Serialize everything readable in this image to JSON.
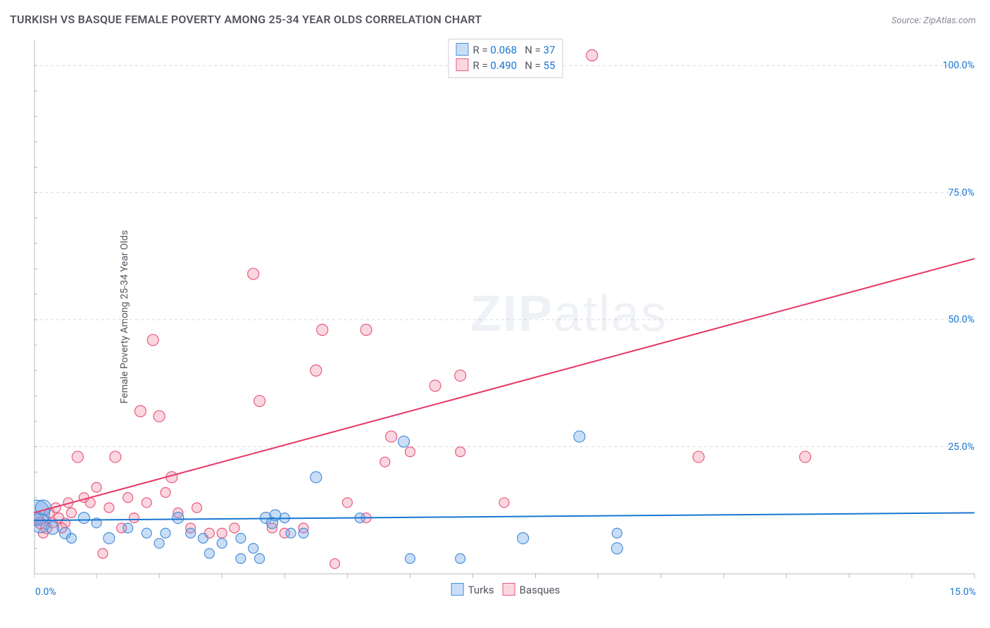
{
  "title": "TURKISH VS BASQUE FEMALE POVERTY AMONG 25-34 YEAR OLDS CORRELATION CHART",
  "source": "Source: ZipAtlas.com",
  "ylabel": "Female Poverty Among 25-34 Year Olds",
  "watermark_zip": "ZIP",
  "watermark_atlas": "atlas",
  "chart": {
    "type": "scatter",
    "xlim": [
      0,
      15
    ],
    "ylim": [
      0,
      105
    ],
    "xlim_labels": [
      "0.0%",
      "15.0%"
    ],
    "ytick_values": [
      25,
      50,
      75,
      100
    ],
    "ytick_labels": [
      "25.0%",
      "50.0%",
      "75.0%",
      "100.0%"
    ],
    "grid_color": "#d8d8e0",
    "axis_color": "#b8b8c4",
    "tick_color": "#b8b8c4",
    "background": "#ffffff",
    "series": [
      {
        "key": "turks",
        "label": "Turks",
        "fill": "rgba(100,160,230,0.35)",
        "stroke": "#4a90d9",
        "line_color": "#1976d2",
        "line_width": 2,
        "R": "0.068",
        "N": "37",
        "trend": {
          "x1": 0,
          "y1": 10.5,
          "x2": 15,
          "y2": 12.0
        },
        "points": [
          {
            "x": 0.05,
            "y": 12,
            "r": 18
          },
          {
            "x": 0.1,
            "y": 10,
            "r": 14
          },
          {
            "x": 0.15,
            "y": 13,
            "r": 11
          },
          {
            "x": 0.3,
            "y": 9,
            "r": 9
          },
          {
            "x": 0.5,
            "y": 8,
            "r": 8
          },
          {
            "x": 0.8,
            "y": 11,
            "r": 8
          },
          {
            "x": 1.2,
            "y": 7,
            "r": 8
          },
          {
            "x": 1.5,
            "y": 9,
            "r": 7
          },
          {
            "x": 1.8,
            "y": 8,
            "r": 7
          },
          {
            "x": 2.0,
            "y": 6,
            "r": 7
          },
          {
            "x": 2.3,
            "y": 11,
            "r": 8
          },
          {
            "x": 2.5,
            "y": 8,
            "r": 7
          },
          {
            "x": 2.7,
            "y": 7,
            "r": 7
          },
          {
            "x": 2.8,
            "y": 4,
            "r": 7
          },
          {
            "x": 3.0,
            "y": 6,
            "r": 7
          },
          {
            "x": 3.3,
            "y": 7,
            "r": 7
          },
          {
            "x": 3.5,
            "y": 5,
            "r": 7
          },
          {
            "x": 3.7,
            "y": 11,
            "r": 8
          },
          {
            "x": 3.8,
            "y": 10,
            "r": 8
          },
          {
            "x": 3.85,
            "y": 11.5,
            "r": 8
          },
          {
            "x": 4.0,
            "y": 11,
            "r": 7
          },
          {
            "x": 4.1,
            "y": 8,
            "r": 7
          },
          {
            "x": 4.3,
            "y": 8,
            "r": 7
          },
          {
            "x": 4.5,
            "y": 19,
            "r": 8
          },
          {
            "x": 5.2,
            "y": 11,
            "r": 7
          },
          {
            "x": 5.9,
            "y": 26,
            "r": 8
          },
          {
            "x": 6.0,
            "y": 3,
            "r": 7
          },
          {
            "x": 6.8,
            "y": 3,
            "r": 7
          },
          {
            "x": 7.8,
            "y": 7,
            "r": 8
          },
          {
            "x": 8.7,
            "y": 27,
            "r": 8
          },
          {
            "x": 9.3,
            "y": 5,
            "r": 8
          },
          {
            "x": 9.3,
            "y": 8,
            "r": 7
          },
          {
            "x": 3.3,
            "y": 3,
            "r": 7
          },
          {
            "x": 3.6,
            "y": 3,
            "r": 7
          },
          {
            "x": 2.1,
            "y": 8,
            "r": 7
          },
          {
            "x": 1.0,
            "y": 10,
            "r": 7
          },
          {
            "x": 0.6,
            "y": 7,
            "r": 7
          }
        ]
      },
      {
        "key": "basques",
        "label": "Basques",
        "fill": "rgba(240,140,165,0.35)",
        "stroke": "#e85b7e",
        "line_color": "#e63965",
        "line_width": 2,
        "R": "0.490",
        "N": "55",
        "trend": {
          "x1": 0,
          "y1": 12,
          "x2": 15,
          "y2": 62
        },
        "points": [
          {
            "x": 0.05,
            "y": 11,
            "r": 9
          },
          {
            "x": 0.1,
            "y": 10,
            "r": 8
          },
          {
            "x": 0.2,
            "y": 9,
            "r": 8
          },
          {
            "x": 0.25,
            "y": 12,
            "r": 7
          },
          {
            "x": 0.3,
            "y": 10,
            "r": 7
          },
          {
            "x": 0.35,
            "y": 13,
            "r": 7
          },
          {
            "x": 0.4,
            "y": 11,
            "r": 7
          },
          {
            "x": 0.5,
            "y": 10,
            "r": 7
          },
          {
            "x": 0.55,
            "y": 14,
            "r": 7
          },
          {
            "x": 0.6,
            "y": 12,
            "r": 7
          },
          {
            "x": 0.7,
            "y": 23,
            "r": 8
          },
          {
            "x": 0.8,
            "y": 15,
            "r": 7
          },
          {
            "x": 0.9,
            "y": 14,
            "r": 7
          },
          {
            "x": 1.0,
            "y": 17,
            "r": 7
          },
          {
            "x": 1.1,
            "y": 4,
            "r": 7
          },
          {
            "x": 1.2,
            "y": 13,
            "r": 7
          },
          {
            "x": 1.3,
            "y": 23,
            "r": 8
          },
          {
            "x": 1.5,
            "y": 15,
            "r": 7
          },
          {
            "x": 1.6,
            "y": 11,
            "r": 7
          },
          {
            "x": 1.7,
            "y": 32,
            "r": 8
          },
          {
            "x": 1.8,
            "y": 14,
            "r": 7
          },
          {
            "x": 1.9,
            "y": 46,
            "r": 8
          },
          {
            "x": 2.0,
            "y": 31,
            "r": 8
          },
          {
            "x": 2.1,
            "y": 16,
            "r": 7
          },
          {
            "x": 2.2,
            "y": 19,
            "r": 8
          },
          {
            "x": 2.3,
            "y": 12,
            "r": 7
          },
          {
            "x": 2.5,
            "y": 9,
            "r": 7
          },
          {
            "x": 2.6,
            "y": 13,
            "r": 7
          },
          {
            "x": 2.8,
            "y": 8,
            "r": 7
          },
          {
            "x": 3.0,
            "y": 8,
            "r": 7
          },
          {
            "x": 3.2,
            "y": 9,
            "r": 7
          },
          {
            "x": 3.5,
            "y": 59,
            "r": 8
          },
          {
            "x": 3.6,
            "y": 34,
            "r": 8
          },
          {
            "x": 3.8,
            "y": 9,
            "r": 7
          },
          {
            "x": 4.0,
            "y": 8,
            "r": 7
          },
          {
            "x": 4.3,
            "y": 9,
            "r": 7
          },
          {
            "x": 4.5,
            "y": 40,
            "r": 8
          },
          {
            "x": 4.6,
            "y": 48,
            "r": 8
          },
          {
            "x": 4.8,
            "y": 2,
            "r": 7
          },
          {
            "x": 5.0,
            "y": 14,
            "r": 7
          },
          {
            "x": 5.3,
            "y": 48,
            "r": 8
          },
          {
            "x": 5.3,
            "y": 11,
            "r": 7
          },
          {
            "x": 5.6,
            "y": 22,
            "r": 7
          },
          {
            "x": 5.7,
            "y": 27,
            "r": 8
          },
          {
            "x": 6.0,
            "y": 24,
            "r": 7
          },
          {
            "x": 6.4,
            "y": 37,
            "r": 8
          },
          {
            "x": 6.8,
            "y": 24,
            "r": 7
          },
          {
            "x": 6.8,
            "y": 39,
            "r": 8
          },
          {
            "x": 7.5,
            "y": 14,
            "r": 7
          },
          {
            "x": 8.9,
            "y": 102,
            "r": 8
          },
          {
            "x": 10.6,
            "y": 23,
            "r": 8
          },
          {
            "x": 12.3,
            "y": 23,
            "r": 8
          },
          {
            "x": 1.4,
            "y": 9,
            "r": 7
          },
          {
            "x": 0.45,
            "y": 9,
            "r": 7
          },
          {
            "x": 0.15,
            "y": 8,
            "r": 7
          }
        ]
      }
    ]
  },
  "legend_top": {
    "r_label": "R =",
    "n_label": "N ="
  }
}
